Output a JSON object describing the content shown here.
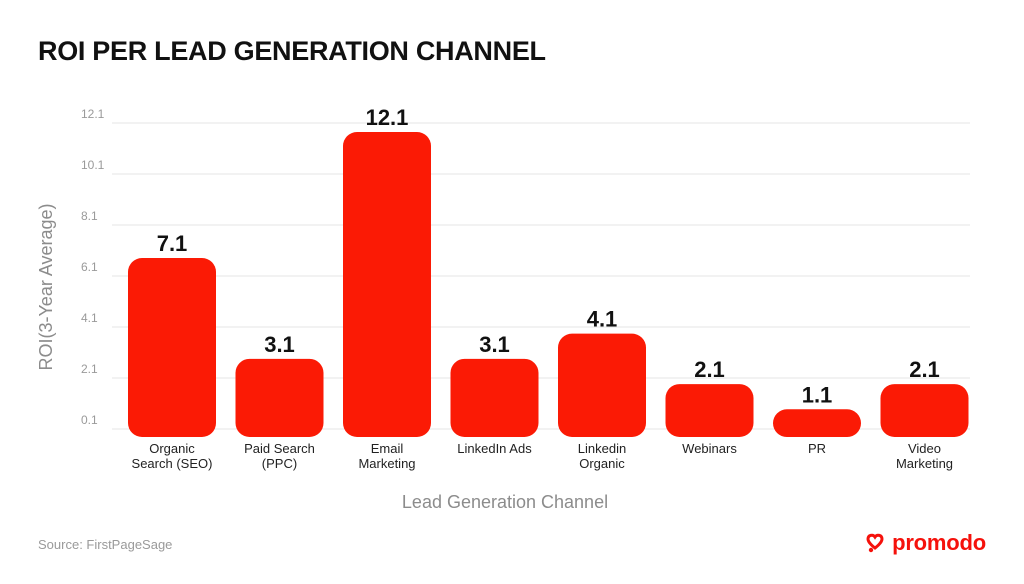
{
  "title": "ROI PER LEAD GENERATION CHANNEL",
  "source": "Source: FirstPageSage",
  "brand": {
    "name": "promodo",
    "icon": "promodo-logo-icon",
    "color": "#f5110b"
  },
  "colors": {
    "bar": "#fb1a05",
    "grid": "#e6e6e6"
  },
  "chart_data": {
    "type": "bar",
    "title": "ROI PER LEAD GENERATION CHANNEL",
    "xlabel": "Lead Generation Channel",
    "ylabel": "ROI(3-Year Average)",
    "categories": [
      [
        "Organic",
        "Search (SEO)"
      ],
      [
        "Paid Search",
        "(PPC)"
      ],
      [
        "Email",
        "Marketing"
      ],
      [
        "LinkedIn Ads"
      ],
      [
        "Linkedin",
        "Organic"
      ],
      [
        "Webinars"
      ],
      [
        "PR"
      ],
      [
        "Video",
        "Marketing"
      ]
    ],
    "values": [
      7.1,
      3.1,
      12.1,
      3.1,
      4.1,
      2.1,
      1.1,
      2.1
    ],
    "value_labels": [
      "7.1",
      "3.1",
      "12.1",
      "3.1",
      "4.1",
      "2.1",
      "1.1",
      "2.1"
    ],
    "yticks": [
      0.1,
      2.1,
      4.1,
      6.1,
      8.1,
      10.1,
      12.1
    ],
    "ytick_labels": [
      "0.1",
      "2.1",
      "4.1",
      "6.1",
      "8.1",
      "10.1",
      "12.1"
    ],
    "ylim": [
      0.1,
      12.1
    ],
    "grid": true,
    "legend": "none"
  }
}
